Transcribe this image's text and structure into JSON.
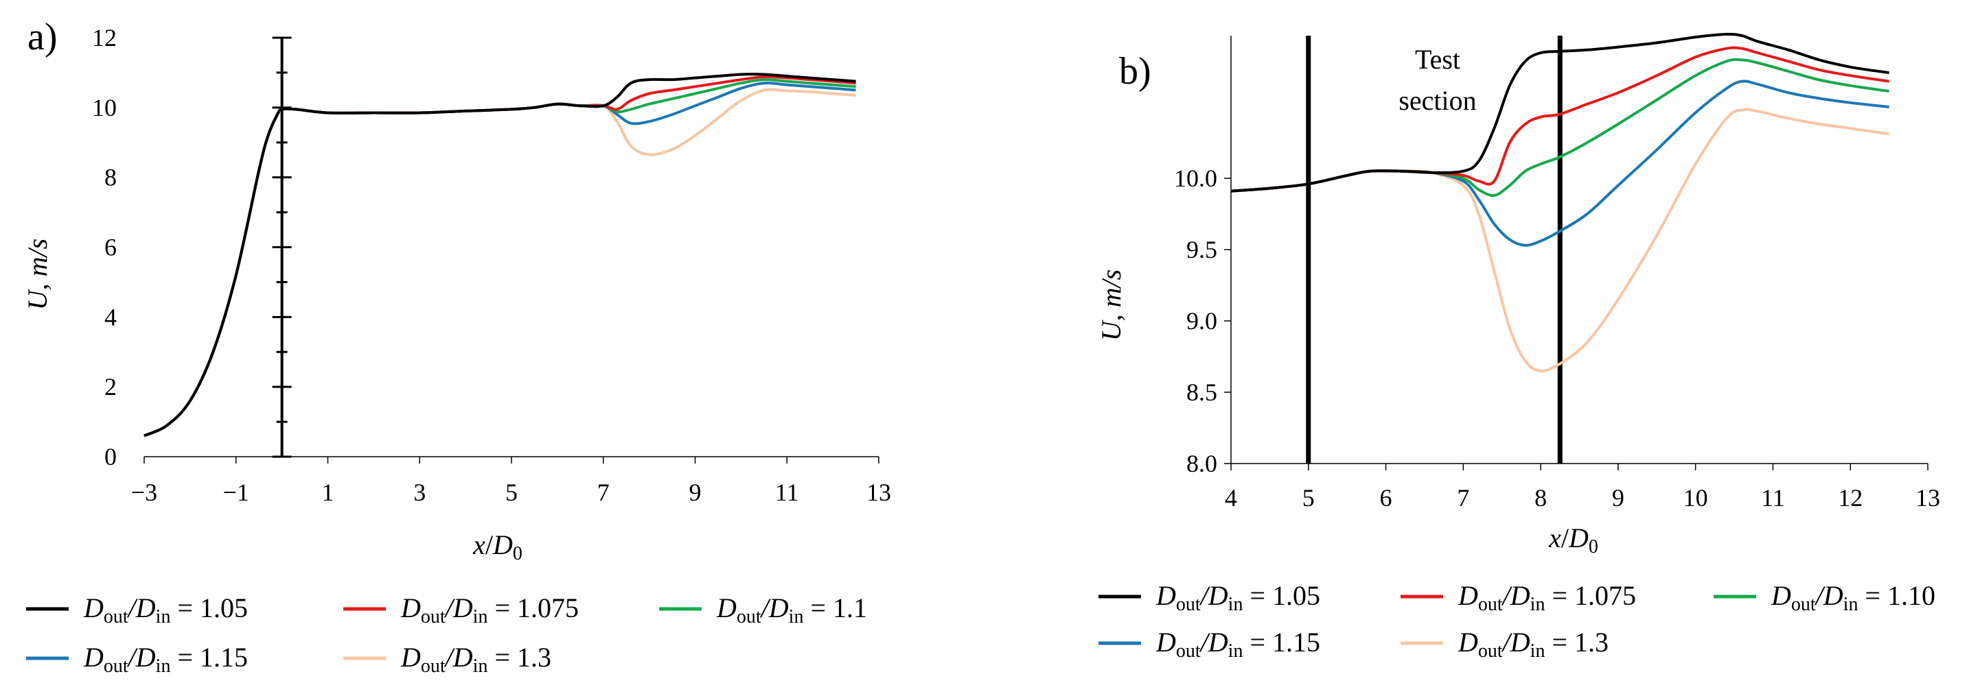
{
  "chart_data": [
    {
      "panel": "a)",
      "type": "line",
      "xlabel": {
        "var": "x",
        "sym": "D",
        "sub": "0"
      },
      "ylabel": "U, m/s",
      "xlim": [
        -3,
        13
      ],
      "ylim": [
        0,
        12
      ],
      "xticks": [
        -3,
        -1,
        1,
        3,
        5,
        7,
        9,
        11,
        13
      ],
      "xtick_labels": [
        "−3",
        "−1",
        "1",
        "3",
        "5",
        "7",
        "9",
        "11",
        "13"
      ],
      "yticks": [
        0,
        2,
        4,
        6,
        8,
        10,
        12
      ],
      "ytick_labels": [
        "0",
        "2",
        "4",
        "6",
        "8",
        "10",
        "12"
      ],
      "y_axis_at_x": 0,
      "x": [
        -3,
        -2.5,
        -2,
        -1.5,
        -1,
        -0.5,
        -0.3,
        -0.1,
        0,
        0.3,
        1,
        2,
        3,
        4,
        5,
        5.5,
        6,
        6.5,
        7,
        7.3,
        7.6,
        8,
        8.5,
        9,
        9.5,
        10,
        10.5,
        11,
        11.5,
        12,
        12.5
      ],
      "series": [
        {
          "name": "Dout/Din = 1.05",
          "color": "#000000",
          "values": [
            0.6,
            0.9,
            1.6,
            3.0,
            5.2,
            8.2,
            9.2,
            9.8,
            9.95,
            9.95,
            9.85,
            9.85,
            9.85,
            9.9,
            9.95,
            10.0,
            10.1,
            10.05,
            10.05,
            10.3,
            10.7,
            10.8,
            10.8,
            10.85,
            10.9,
            10.95,
            10.95,
            10.9,
            10.85,
            10.8,
            10.75
          ]
        },
        {
          "name": "Dout/Din = 1.075",
          "color": "#e41a1c",
          "values": [
            0.6,
            0.9,
            1.6,
            3.0,
            5.2,
            8.2,
            9.2,
            9.8,
            9.95,
            9.95,
            9.85,
            9.85,
            9.85,
            9.9,
            9.95,
            10.0,
            10.1,
            10.05,
            10.05,
            9.95,
            10.2,
            10.4,
            10.5,
            10.6,
            10.7,
            10.8,
            10.88,
            10.85,
            10.8,
            10.75,
            10.7
          ]
        },
        {
          "name": "Dout/Din = 1.1",
          "color": "#17a84b",
          "values": [
            0.6,
            0.9,
            1.6,
            3.0,
            5.2,
            8.2,
            9.2,
            9.8,
            9.95,
            9.95,
            9.85,
            9.85,
            9.85,
            9.9,
            9.95,
            10.0,
            10.1,
            10.05,
            10.05,
            9.88,
            9.95,
            10.1,
            10.25,
            10.4,
            10.55,
            10.7,
            10.8,
            10.75,
            10.7,
            10.65,
            10.6
          ]
        },
        {
          "name": "Dout/Din = 1.15",
          "color": "#1f77b4",
          "values": [
            0.6,
            0.9,
            1.6,
            3.0,
            5.2,
            8.2,
            9.2,
            9.8,
            9.95,
            9.95,
            9.85,
            9.85,
            9.85,
            9.9,
            9.95,
            10.0,
            10.1,
            10.05,
            10.05,
            9.8,
            9.55,
            9.6,
            9.8,
            10.05,
            10.3,
            10.55,
            10.7,
            10.65,
            10.6,
            10.55,
            10.5
          ]
        },
        {
          "name": "Dout/Din = 1.3",
          "color": "#f7c6a3",
          "values": [
            0.6,
            0.9,
            1.6,
            3.0,
            5.2,
            8.2,
            9.2,
            9.8,
            9.95,
            9.95,
            9.85,
            9.85,
            9.85,
            9.9,
            9.95,
            10.0,
            10.1,
            10.05,
            10.05,
            9.6,
            8.9,
            8.65,
            8.8,
            9.2,
            9.7,
            10.2,
            10.5,
            10.48,
            10.45,
            10.4,
            10.35
          ]
        }
      ],
      "legend": [
        {
          "pre": "D",
          "sub1": "out",
          "mid": "/D",
          "sub2": "in",
          "post": " = 1.05",
          "color": "#000000"
        },
        {
          "pre": "D",
          "sub1": "out",
          "mid": "/D",
          "sub2": "in",
          "post": " = 1.075",
          "color": "#e41a1c"
        },
        {
          "pre": "D",
          "sub1": "out",
          "mid": "/D",
          "sub2": "in",
          "post": " = 1.1",
          "color": "#17a84b"
        },
        {
          "pre": "D",
          "sub1": "out",
          "mid": "/D",
          "sub2": "in",
          "post": " = 1.15",
          "color": "#1f77b4"
        },
        {
          "pre": "D",
          "sub1": "out",
          "mid": "/D",
          "sub2": "in",
          "post": " = 1.3",
          "color": "#f7c6a3"
        }
      ]
    },
    {
      "panel": "b)",
      "type": "line",
      "xlabel": {
        "var": "x",
        "sym": "D",
        "sub": "0"
      },
      "ylabel": "U, m/s",
      "xlim": [
        4,
        13
      ],
      "ylim": [
        8.0,
        11.0
      ],
      "xticks": [
        4,
        5,
        6,
        7,
        8,
        9,
        10,
        11,
        12,
        13
      ],
      "xtick_labels": [
        "4",
        "5",
        "6",
        "7",
        "8",
        "9",
        "10",
        "11",
        "12",
        "13"
      ],
      "yticks": [
        8.0,
        8.5,
        9.0,
        9.5,
        10.0
      ],
      "ytick_labels": [
        "8.0",
        "8.5",
        "9.0",
        "9.5",
        "10.0"
      ],
      "annotation": {
        "line1": "Test",
        "line2": "section"
      },
      "vlines": [
        5.0,
        8.25
      ],
      "x": [
        4,
        4.5,
        5,
        5.5,
        5.8,
        6.2,
        6.6,
        7.0,
        7.2,
        7.4,
        7.6,
        7.8,
        8.0,
        8.25,
        8.6,
        9.0,
        9.5,
        10.0,
        10.4,
        10.6,
        10.8,
        11.2,
        11.6,
        12.0,
        12.5
      ],
      "series": [
        {
          "name": "Dout/Din = 1.05",
          "color": "#000000",
          "values": [
            9.91,
            9.93,
            9.96,
            10.02,
            10.05,
            10.05,
            10.04,
            10.05,
            10.12,
            10.35,
            10.65,
            10.82,
            10.88,
            10.89,
            10.9,
            10.92,
            10.95,
            10.99,
            11.01,
            11.0,
            10.96,
            10.9,
            10.83,
            10.78,
            10.74
          ]
        },
        {
          "name": "Dout/Din = 1.075",
          "color": "#e41a1c",
          "values": [
            9.91,
            9.93,
            9.96,
            10.02,
            10.05,
            10.05,
            10.04,
            10.02,
            9.98,
            9.98,
            10.25,
            10.38,
            10.43,
            10.45,
            10.52,
            10.6,
            10.72,
            10.85,
            10.91,
            10.91,
            10.88,
            10.82,
            10.76,
            10.72,
            10.68
          ]
        },
        {
          "name": "Dout/Din = 1.1",
          "color": "#17a84b",
          "values": [
            9.91,
            9.93,
            9.96,
            10.02,
            10.05,
            10.05,
            10.04,
            10.0,
            9.92,
            9.88,
            9.95,
            10.05,
            10.1,
            10.15,
            10.25,
            10.38,
            10.55,
            10.72,
            10.82,
            10.83,
            10.81,
            10.75,
            10.69,
            10.65,
            10.61
          ]
        },
        {
          "name": "Dout/Din = 1.15",
          "color": "#1f77b4",
          "values": [
            9.91,
            9.93,
            9.96,
            10.02,
            10.05,
            10.05,
            10.04,
            9.98,
            9.85,
            9.68,
            9.57,
            9.53,
            9.56,
            9.63,
            9.75,
            9.95,
            10.2,
            10.46,
            10.63,
            10.68,
            10.66,
            10.6,
            10.56,
            10.53,
            10.5
          ]
        },
        {
          "name": "Dout/Din = 1.3",
          "color": "#f7c6a3",
          "values": [
            9.91,
            9.93,
            9.96,
            10.02,
            10.05,
            10.05,
            10.04,
            9.95,
            9.75,
            9.35,
            8.95,
            8.72,
            8.65,
            8.7,
            8.85,
            9.15,
            9.6,
            10.1,
            10.42,
            10.48,
            10.47,
            10.42,
            10.38,
            10.35,
            10.31
          ]
        }
      ],
      "legend": [
        {
          "pre": "D",
          "sub1": "out",
          "mid": "/D",
          "sub2": "in",
          "post": " = 1.05",
          "color": "#000000"
        },
        {
          "pre": "D",
          "sub1": "out",
          "mid": "/D",
          "sub2": "in",
          "post": " = 1.075",
          "color": "#e41a1c"
        },
        {
          "pre": "D",
          "sub1": "out",
          "mid": "/D",
          "sub2": "in",
          "post": " = 1.10",
          "color": "#17a84b"
        },
        {
          "pre": "D",
          "sub1": "out",
          "mid": "/D",
          "sub2": "in",
          "post": " = 1.15",
          "color": "#1f77b4"
        },
        {
          "pre": "D",
          "sub1": "out",
          "mid": "/D",
          "sub2": "in",
          "post": " = 1.3",
          "color": "#f7c6a3"
        }
      ]
    }
  ]
}
